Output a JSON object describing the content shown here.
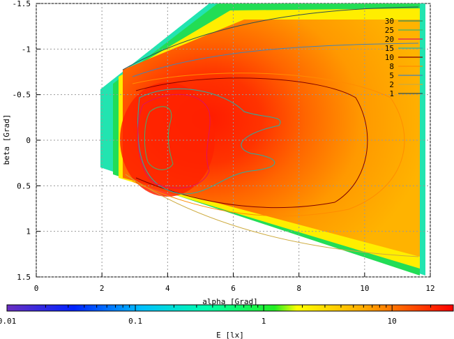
{
  "chart_data": {
    "type": "heatmap",
    "title": "",
    "xlabel": "alpha [Grad]",
    "ylabel": "beta [Grad]",
    "xlim": [
      0,
      12
    ],
    "ylim": [
      -1.5,
      1.5
    ],
    "y_inverted": true,
    "x_ticks": [
      "0",
      "2",
      "4",
      "6",
      "8",
      "10",
      "12"
    ],
    "y_ticks": [
      "-1.5",
      "-1",
      "-0.5",
      "0",
      "0.5",
      "1",
      "1.5"
    ],
    "grid": true,
    "legend_position": "top-right",
    "contour_levels": [
      {
        "label": "30",
        "color": "#2e8b57"
      },
      {
        "label": "25",
        "color": "#3cb371"
      },
      {
        "label": "20",
        "color": "#e0115f"
      },
      {
        "label": "15",
        "color": "#20b2aa"
      },
      {
        "label": "10",
        "color": "#800000"
      },
      {
        "label": "8",
        "color": "#ff8c00"
      },
      {
        "label": "5",
        "color": "#4682b4"
      },
      {
        "label": "2",
        "color": "#cdaa3d"
      },
      {
        "label": "1",
        "color": "#2f4f4f"
      }
    ],
    "colorbar": {
      "label": "E [lx]",
      "scale": "log",
      "range": [
        0.01,
        30
      ],
      "ticks": [
        "0.01",
        "0.1",
        "1",
        "10"
      ]
    }
  }
}
